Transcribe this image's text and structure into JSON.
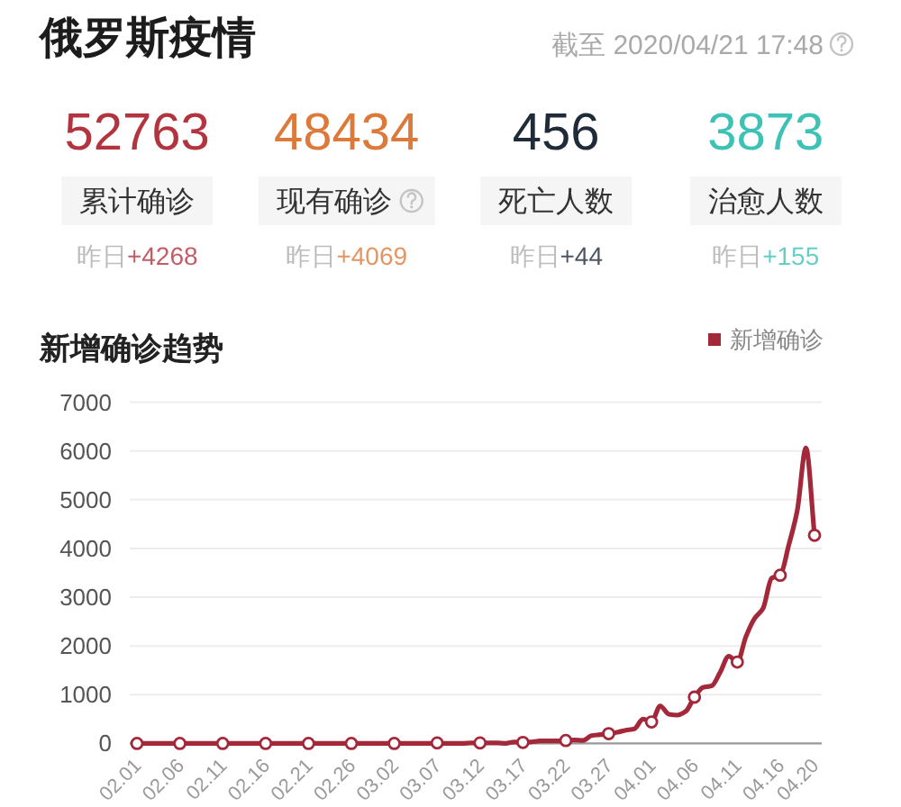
{
  "chart_data": [
    {
      "type": "other",
      "title": "俄罗斯疫情",
      "subtitle": "截至 2020/04/21 17:48",
      "annotations": [
        "52763",
        "累计确诊",
        "昨日+4268",
        "48434",
        "现有确诊",
        "昨日+4069",
        "456",
        "死亡人数",
        "昨日+44",
        "3873",
        "治愈人数",
        "昨日+155"
      ]
    },
    {
      "type": "line",
      "title": "新增确诊趋势",
      "categories": [
        "02.01",
        null,
        null,
        null,
        null,
        "02.06",
        null,
        null,
        null,
        null,
        "02.11",
        null,
        null,
        null,
        null,
        "02.16",
        null,
        null,
        null,
        null,
        "02.21",
        null,
        null,
        null,
        null,
        "02.26",
        null,
        null,
        null,
        null,
        "03.02",
        null,
        null,
        null,
        null,
        "03.07",
        null,
        null,
        null,
        null,
        "03.12",
        null,
        null,
        null,
        null,
        "03.17",
        null,
        null,
        null,
        null,
        "03.22",
        null,
        null,
        null,
        null,
        "03.27",
        null,
        null,
        null,
        null,
        "04.01",
        null,
        null,
        null,
        null,
        "04.06",
        null,
        null,
        null,
        null,
        "04.11",
        null,
        null,
        null,
        null,
        "04.16",
        null,
        null,
        null,
        "04.20"
      ],
      "series": [
        {
          "name": "新增确诊",
          "color": "#a3283a",
          "values": [
            0,
            0,
            0,
            0,
            0,
            0,
            0,
            0,
            0,
            0,
            0,
            0,
            0,
            0,
            0,
            0,
            0,
            0,
            0,
            0,
            0,
            0,
            0,
            0,
            0,
            0,
            0,
            0,
            0,
            0,
            0,
            0,
            0,
            0,
            0,
            10,
            0,
            0,
            0,
            10,
            10,
            10,
            10,
            0,
            30,
            20,
            30,
            50,
            50,
            50,
            60,
            70,
            60,
            160,
            180,
            200,
            230,
            270,
            300,
            500,
            440,
            770,
            600,
            580,
            660,
            950,
            1150,
            1180,
            1460,
            1790,
            1670,
            2190,
            2560,
            2770,
            3390,
            3450,
            4070,
            4790,
            6060,
            4270
          ]
        },
        {
          "type": "scatter",
          "color": "#a3283a",
          "marker": "circle",
          "values": [
            0,
            null,
            null,
            null,
            null,
            0,
            null,
            null,
            null,
            null,
            0,
            null,
            null,
            null,
            null,
            0,
            null,
            null,
            null,
            null,
            0,
            null,
            null,
            null,
            null,
            0,
            null,
            null,
            null,
            null,
            0,
            null,
            null,
            null,
            null,
            10,
            null,
            null,
            null,
            null,
            10,
            null,
            null,
            null,
            null,
            20,
            null,
            null,
            null,
            null,
            60,
            null,
            null,
            null,
            null,
            200,
            null,
            null,
            null,
            null,
            440,
            null,
            null,
            null,
            null,
            950,
            null,
            null,
            null,
            null,
            1670,
            null,
            null,
            null,
            null,
            3450,
            null,
            null,
            null,
            4270
          ]
        }
      ],
      "ylim": [
        0,
        7000
      ],
      "yticks": [
        0,
        1000,
        2000,
        3000,
        4000,
        5000,
        6000,
        7000
      ],
      "grid": "y",
      "legend": "top right",
      "line_style": "solid"
    }
  ]
}
